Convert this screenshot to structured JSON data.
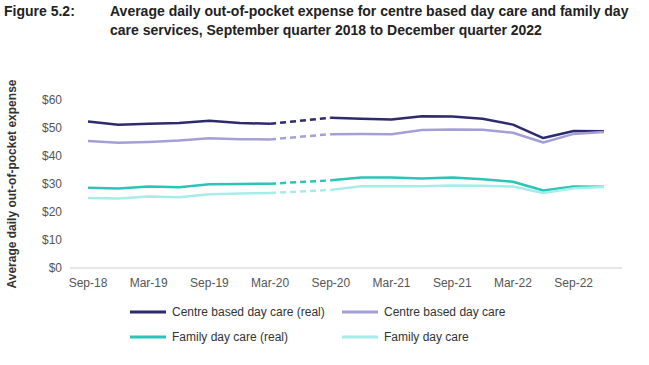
{
  "chart_data": {
    "type": "line",
    "title": "Figure 5.2: Average daily out-of-pocket expense for centre based day care and family day care services, September quarter 2018 to December quarter 2022",
    "y_label": "Average daily out-of-pocket expense",
    "categories": [
      "Sep-18",
      null,
      "Mar-19",
      null,
      "Sep-19",
      null,
      "Mar-20",
      null,
      "Sep-20",
      null,
      "Mar-21",
      null,
      "Sep-21",
      null,
      "Mar-22",
      null,
      "Sep-22",
      null
    ],
    "series": [
      {
        "name": "Centre based day care (real)",
        "color": "#2d2a6e",
        "values": [
          52.3,
          51.2,
          51.5,
          51.8,
          52.6,
          51.8,
          51.5,
          null,
          53.7,
          53.3,
          53.0,
          54.2,
          54.1,
          53.3,
          51.2,
          46.4,
          48.9,
          48.8
        ]
      },
      {
        "name": "Centre based day care",
        "color": "#a49fd8",
        "values": [
          45.4,
          44.7,
          45.0,
          45.5,
          46.3,
          46.0,
          45.9,
          null,
          47.8,
          47.9,
          47.8,
          49.3,
          49.5,
          49.4,
          48.3,
          44.8,
          47.9,
          48.6
        ]
      },
      {
        "name": "Family day care (real)",
        "color": "#2bc4b8",
        "values": [
          28.7,
          28.4,
          29.1,
          28.8,
          29.9,
          30.0,
          30.1,
          null,
          31.3,
          32.3,
          32.3,
          32.0,
          32.3,
          31.7,
          30.8,
          27.7,
          29.1,
          29.0
        ]
      },
      {
        "name": "Family day care",
        "color": "#a6ece8",
        "values": [
          25.0,
          24.8,
          25.5,
          25.3,
          26.3,
          26.6,
          26.8,
          null,
          27.9,
          29.2,
          29.2,
          29.2,
          29.5,
          29.4,
          29.1,
          26.8,
          28.5,
          28.9
        ]
      }
    ],
    "ylim": [
      0,
      60
    ],
    "yticks": [
      {
        "value": 0,
        "label": "$0"
      },
      {
        "value": 10,
        "label": "$10"
      },
      {
        "value": 20,
        "label": "$20"
      },
      {
        "value": 30,
        "label": "$30"
      },
      {
        "value": 40,
        "label": "$40"
      },
      {
        "value": 50,
        "label": "$50"
      },
      {
        "value": 60,
        "label": "$60"
      }
    ],
    "grid": false,
    "legend": "bottom"
  }
}
